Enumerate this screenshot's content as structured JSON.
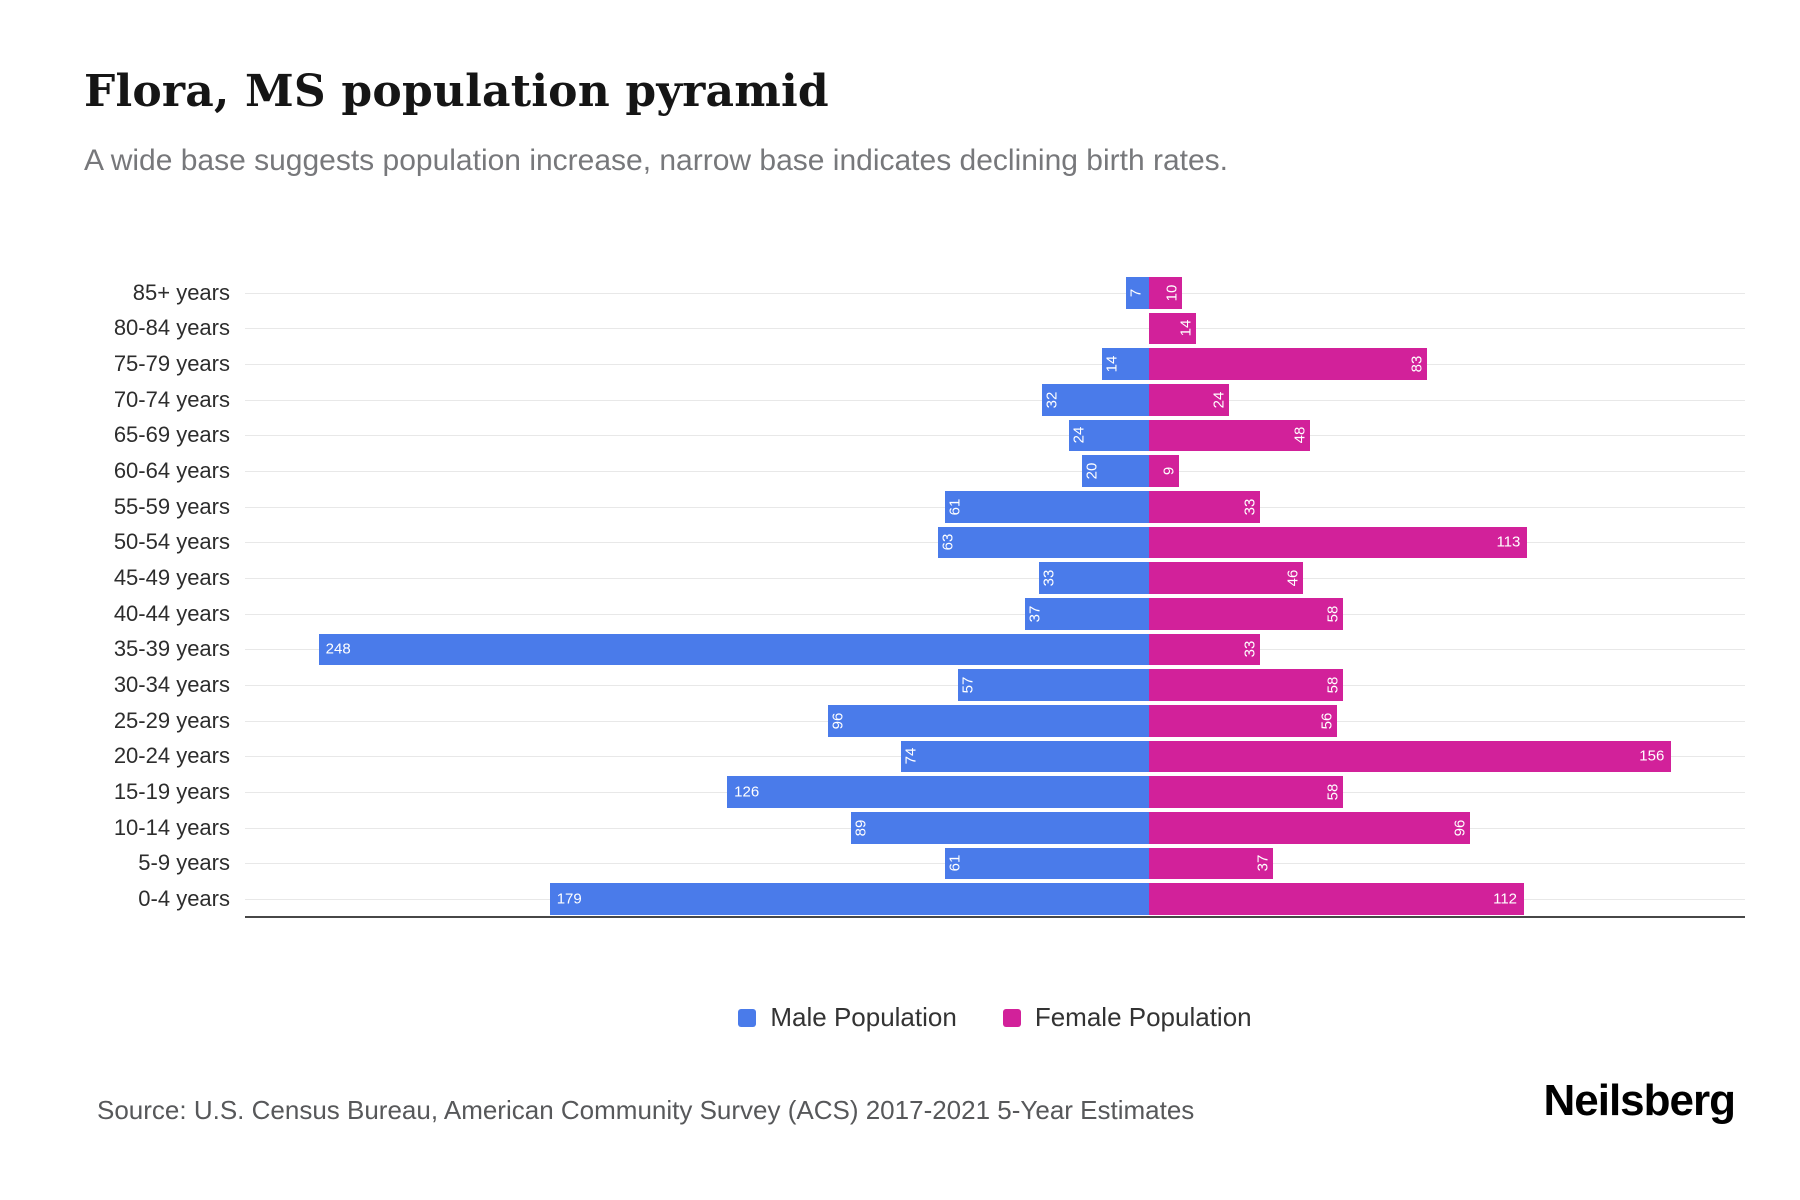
{
  "chart_data": {
    "type": "bar",
    "variant": "population-pyramid",
    "title": "Flora, MS population pyramid",
    "subtitle": "A wide base suggests population increase, narrow base indicates declining birth rates.",
    "categories": [
      "85+ years",
      "80-84 years",
      "75-79 years",
      "70-74 years",
      "65-69 years",
      "60-64 years",
      "55-59 years",
      "50-54 years",
      "45-49 years",
      "40-44 years",
      "35-39 years",
      "30-34 years",
      "25-29 years",
      "20-24 years",
      "15-19 years",
      "10-14 years",
      "5-9 years",
      "0-4 years"
    ],
    "series": [
      {
        "name": "Male Population",
        "color": "#4a7bea",
        "direction": "left",
        "values": [
          7,
          0,
          14,
          32,
          24,
          20,
          61,
          63,
          33,
          37,
          248,
          57,
          96,
          74,
          126,
          89,
          61,
          179
        ]
      },
      {
        "name": "Female Population",
        "color": "#d2219a",
        "direction": "right",
        "values": [
          10,
          14,
          83,
          24,
          48,
          9,
          33,
          113,
          46,
          58,
          33,
          58,
          56,
          156,
          58,
          96,
          37,
          112
        ]
      }
    ],
    "xlim": [
      -270,
      178
    ],
    "value_label_rotate_below": 100,
    "grid": true,
    "legend_position": "bottom"
  },
  "footer": {
    "source": "Source: U.S. Census Bureau, American Community Survey (ACS) 2017-2021 5-Year Estimates",
    "logo": "Neilsberg"
  }
}
